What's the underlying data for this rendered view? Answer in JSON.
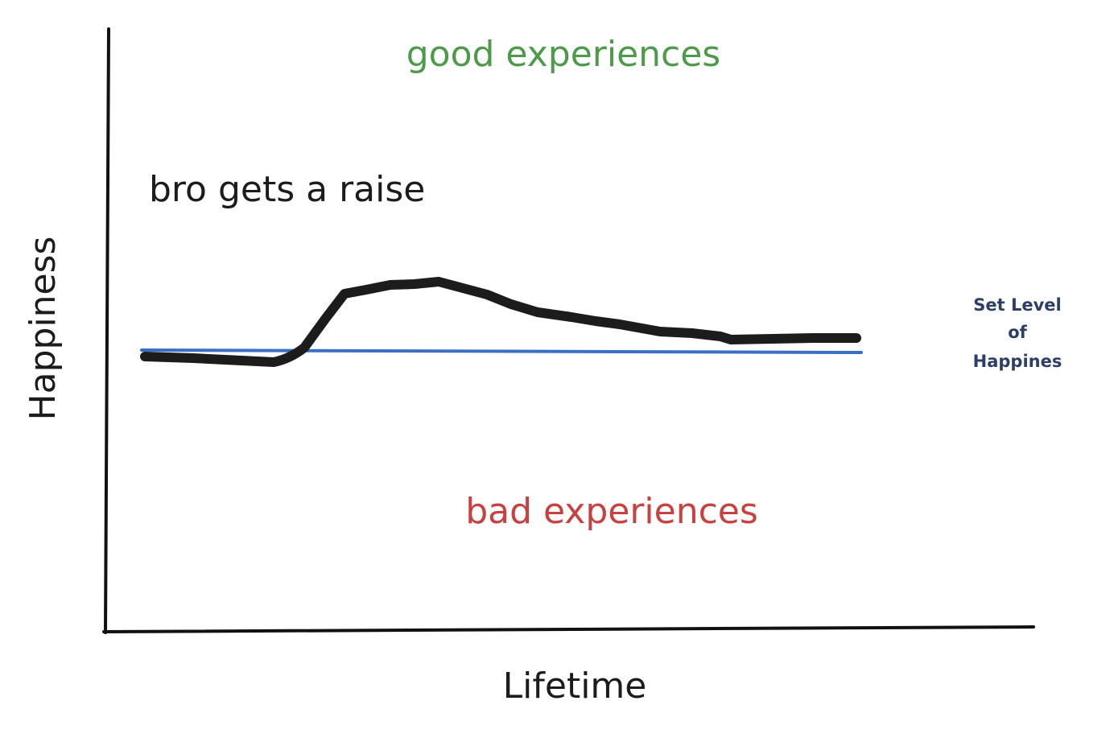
{
  "title_top": "good experiences",
  "event_label": "bro gets a raise",
  "bottom_label": "bad experiences",
  "y_axis_label": "Happiness",
  "x_axis_label": "Lifetime",
  "set_level_label": [
    "Set Level",
    "of",
    "Happines"
  ]
}
